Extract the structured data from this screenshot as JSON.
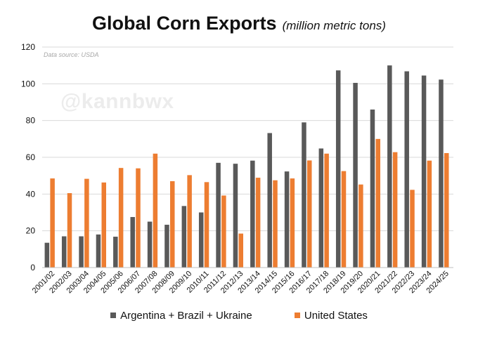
{
  "title": "Global Corn Exports",
  "subtitle": "(million metric tons)",
  "source": "Data source: USDA",
  "watermark": "@kannbwx",
  "colors": {
    "series_a": "#595959",
    "series_b": "#ED7D31",
    "grid": "#d9d9d9"
  },
  "legend": [
    {
      "name": "Argentina + Brazil + Ukraine",
      "color": "#595959"
    },
    {
      "name": "United States",
      "color": "#ED7D31"
    }
  ],
  "chart_data": {
    "type": "bar",
    "title": "Global Corn Exports",
    "subtitle": "(million metric tons)",
    "categories": [
      "2001/02",
      "2002/03",
      "2003/04",
      "2004/05",
      "2005/06",
      "2006/07",
      "2007/08",
      "2008/09",
      "2009/10",
      "2010/11",
      "2011/12",
      "2012/13",
      "2013/14",
      "2014/15",
      "2015/16",
      "2016/17",
      "2017/18",
      "2018/19",
      "2019/20",
      "2020/21",
      "2021/22",
      "2022/23",
      "2023/24",
      "2024/25"
    ],
    "series": [
      {
        "name": "Argentina + Brazil + Ukraine",
        "color": "#595959",
        "values": [
          13.5,
          17,
          17,
          18,
          16.8,
          27.5,
          25,
          23.3,
          33.5,
          30,
          57,
          56.5,
          58.2,
          73.2,
          52.3,
          79,
          64.8,
          107.3,
          100.5,
          86,
          110,
          106.8,
          104.5,
          102.3
        ]
      },
      {
        "name": "United States",
        "color": "#ED7D31",
        "values": [
          48.5,
          40.5,
          48.3,
          46.3,
          54.2,
          54,
          62,
          47,
          50.3,
          46.5,
          39.2,
          18.5,
          48.9,
          47.5,
          48.5,
          58.3,
          62,
          52.5,
          45.2,
          70,
          62.8,
          42.3,
          58.2,
          62.3
        ]
      }
    ],
    "yticks": [
      0,
      20,
      40,
      60,
      80,
      100,
      120
    ],
    "ylim": [
      0,
      120
    ],
    "xlabel": "",
    "ylabel": "",
    "grid": true,
    "legend_position": "bottom"
  }
}
